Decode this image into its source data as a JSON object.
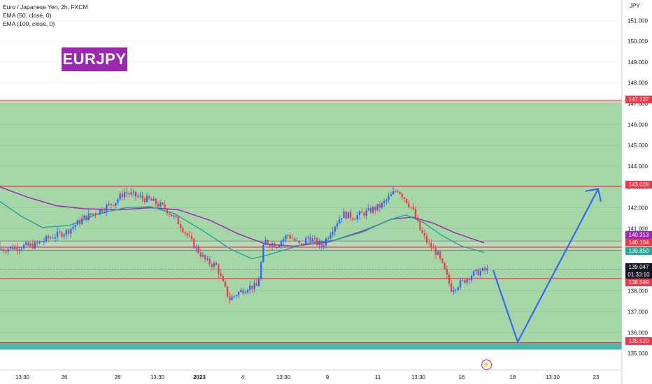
{
  "legend": {
    "title": "Euro / Japanese Yen, 2h, FXCM",
    "ema1": "EMA (50, close, 0)",
    "ema2": "EMA (100, close, 0)"
  },
  "badge": "EURJPY",
  "currency": "JPY",
  "colors": {
    "zone": "#a5d6a7",
    "up": "#2962ff",
    "down": "#f23645",
    "ema50": "#26a69a",
    "ema100": "#9c27b0",
    "arrow": "#2962ff",
    "levels": "#f23645"
  },
  "price_labels": {
    "r1": "147.137",
    "r2": "143.028",
    "ema100": "140.313",
    "level": "140.104",
    "ema50": "139.850",
    "last": "139.047",
    "countdown": "01:33:10",
    "s1": "138.599",
    "s2": "135.520"
  },
  "chart_data": {
    "type": "candlestick",
    "y_ticks": [
      "151.000",
      "150.000",
      "149.000",
      "148.000",
      "147.000",
      "146.000",
      "145.000",
      "144.000",
      "143.000",
      "142.000",
      "141.000",
      "140.000",
      "139.000",
      "138.000",
      "137.000",
      "136.000",
      "135.000"
    ],
    "ylim": [
      134.7,
      151.6
    ],
    "x_ticks": [
      "13:30",
      "26",
      "28",
      "13:30",
      "2023",
      "4",
      "13:30",
      "9",
      "11",
      "13:30",
      "16",
      "18",
      "13:30",
      "23"
    ],
    "horizontal_levels": [
      147.137,
      143.028,
      140.104,
      138.599,
      135.52
    ],
    "ema50_last": 139.85,
    "ema100_last": 140.313,
    "last_price": 139.047,
    "projection": [
      {
        "label": "start",
        "price": 139.0
      },
      {
        "label": "low",
        "price": 135.55
      },
      {
        "label": "target",
        "price": 142.9
      }
    ]
  }
}
